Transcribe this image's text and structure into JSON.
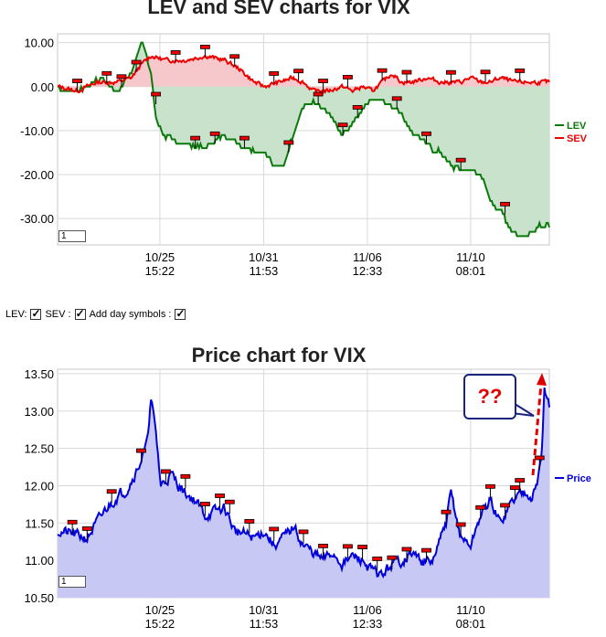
{
  "colors": {
    "lev": "#0a7a0a",
    "sev": "#ee0000",
    "price": "#0000dd",
    "price_fill": "#c8c8f4",
    "lev_fill": "#c9e2cc",
    "sev_fill": "#f6c8cc",
    "grid": "#d8d8d8",
    "note_border": "#1a237e"
  },
  "controls": {
    "lev_label": "LEV:",
    "sev_label": "SEV :",
    "day_label": "Add day symbols :"
  },
  "annotation": {
    "text": "??"
  },
  "chart_data": [
    {
      "type": "line",
      "title": "LEV and SEV charts for VIX",
      "xlabel": "",
      "ylabel": "",
      "ylim": [
        -36,
        12
      ],
      "yticks": [
        "10.00",
        "0.00",
        "-10.00",
        "-20.00",
        "-30.00"
      ],
      "ytick_values": [
        10,
        0,
        -10,
        -20,
        -30
      ],
      "xtick_labels": [
        [
          "10/25",
          "15:22"
        ],
        [
          "10/31",
          "11:53"
        ],
        [
          "11/06",
          "12:33"
        ],
        [
          "11/10",
          "08:01"
        ]
      ],
      "xtick_positions": [
        0.208,
        0.419,
        0.63,
        0.84
      ],
      "legend": "right",
      "zoom_value": "1",
      "series": [
        {
          "name": "LEV",
          "color": "#0a7a0a",
          "x": [
            0,
            0.03,
            0.06,
            0.09,
            0.12,
            0.15,
            0.17,
            0.19,
            0.2,
            0.22,
            0.26,
            0.3,
            0.34,
            0.37,
            0.4,
            0.42,
            0.44,
            0.46,
            0.48,
            0.5,
            0.52,
            0.55,
            0.58,
            0.6,
            0.62,
            0.64,
            0.66,
            0.68,
            0.7,
            0.72,
            0.74,
            0.76,
            0.78,
            0.8,
            0.82,
            0.84,
            0.86,
            0.88,
            0.9,
            0.92,
            0.94,
            0.96,
            0.98,
            1.0
          ],
          "values": [
            0,
            -1,
            0,
            2,
            -1,
            3,
            11,
            3,
            -7,
            -12,
            -13,
            -14,
            -11,
            -13,
            -14,
            -15,
            -18,
            -17,
            -11,
            -5,
            -4,
            -6,
            -11,
            -8,
            -5,
            -3,
            -3,
            -4,
            -6,
            -10,
            -12,
            -14,
            -15,
            -18,
            -19,
            -19,
            -20,
            -26,
            -28,
            -32,
            -34,
            -33,
            -32,
            -32
          ]
        },
        {
          "name": "SEV",
          "color": "#ee0000",
          "x": [
            0,
            0.04,
            0.08,
            0.12,
            0.15,
            0.17,
            0.19,
            0.22,
            0.26,
            0.3,
            0.34,
            0.37,
            0.4,
            0.42,
            0.45,
            0.48,
            0.5,
            0.52,
            0.55,
            0.58,
            0.6,
            0.62,
            0.64,
            0.66,
            0.68,
            0.7,
            0.72,
            0.75,
            0.78,
            0.8,
            0.82,
            0.84,
            0.86,
            0.88,
            0.9,
            0.93,
            0.96,
            1.0
          ],
          "values": [
            0,
            -1,
            1,
            1,
            2,
            5,
            7,
            6,
            6,
            7,
            6,
            4,
            1,
            0,
            1,
            2,
            1,
            -1,
            -1,
            0,
            -1,
            0,
            -1,
            1,
            3,
            1,
            1,
            2,
            1,
            1,
            1,
            2,
            1,
            1,
            2,
            1,
            1,
            1
          ]
        }
      ],
      "markers_x": [
        0.04,
        0.1,
        0.13,
        0.16,
        0.2,
        0.24,
        0.28,
        0.3,
        0.32,
        0.36,
        0.38,
        0.44,
        0.47,
        0.49,
        0.53,
        0.54,
        0.58,
        0.59,
        0.61,
        0.66,
        0.69,
        0.71,
        0.75,
        0.8,
        0.82,
        0.87,
        0.91,
        0.94
      ]
    },
    {
      "type": "area",
      "title": "Price chart for VIX",
      "xlabel": "",
      "ylabel": "",
      "ylim": [
        10.5,
        13.56
      ],
      "yticks": [
        "13.50",
        "13.00",
        "12.50",
        "12.00",
        "11.50",
        "11.00",
        "10.50"
      ],
      "ytick_values": [
        13.5,
        13.0,
        12.5,
        12.0,
        11.5,
        11.0,
        10.5
      ],
      "xtick_labels": [
        [
          "10/25",
          "15:22"
        ],
        [
          "10/31",
          "11:53"
        ],
        [
          "11/06",
          "12:33"
        ],
        [
          "11/10",
          "08:01"
        ]
      ],
      "xtick_positions": [
        0.208,
        0.419,
        0.63,
        0.84
      ],
      "legend": "right",
      "zoom_value": "1",
      "series": [
        {
          "name": "Price",
          "color": "#0000dd",
          "x": [
            0,
            0.03,
            0.06,
            0.08,
            0.1,
            0.12,
            0.14,
            0.16,
            0.18,
            0.19,
            0.2,
            0.21,
            0.23,
            0.26,
            0.28,
            0.3,
            0.32,
            0.34,
            0.36,
            0.38,
            0.4,
            0.42,
            0.44,
            0.46,
            0.48,
            0.5,
            0.52,
            0.54,
            0.56,
            0.58,
            0.6,
            0.62,
            0.64,
            0.66,
            0.68,
            0.7,
            0.72,
            0.74,
            0.76,
            0.78,
            0.79,
            0.8,
            0.82,
            0.84,
            0.86,
            0.88,
            0.9,
            0.92,
            0.94,
            0.955,
            0.965,
            0.975,
            0.985,
            0.99,
            1.0
          ],
          "values": [
            11.4,
            11.35,
            11.3,
            11.5,
            11.7,
            11.85,
            11.95,
            12.2,
            12.5,
            13.15,
            12.7,
            12.0,
            12.15,
            11.9,
            11.8,
            11.6,
            11.65,
            11.7,
            11.4,
            11.35,
            11.3,
            11.4,
            11.2,
            11.3,
            11.45,
            11.2,
            11.1,
            11.0,
            11.1,
            10.95,
            11.05,
            11.0,
            10.85,
            10.8,
            10.95,
            11.0,
            11.1,
            11.0,
            10.95,
            11.3,
            11.5,
            11.9,
            11.3,
            11.2,
            11.6,
            11.8,
            11.5,
            11.75,
            11.9,
            11.95,
            11.85,
            12.0,
            12.5,
            13.3,
            13.05
          ]
        }
      ],
      "markers_x": [
        0.03,
        0.06,
        0.11,
        0.17,
        0.22,
        0.26,
        0.3,
        0.33,
        0.35,
        0.39,
        0.44,
        0.5,
        0.54,
        0.59,
        0.62,
        0.65,
        0.68,
        0.71,
        0.75,
        0.79,
        0.82,
        0.86,
        0.88,
        0.91,
        0.93,
        0.94,
        0.98
      ]
    }
  ]
}
